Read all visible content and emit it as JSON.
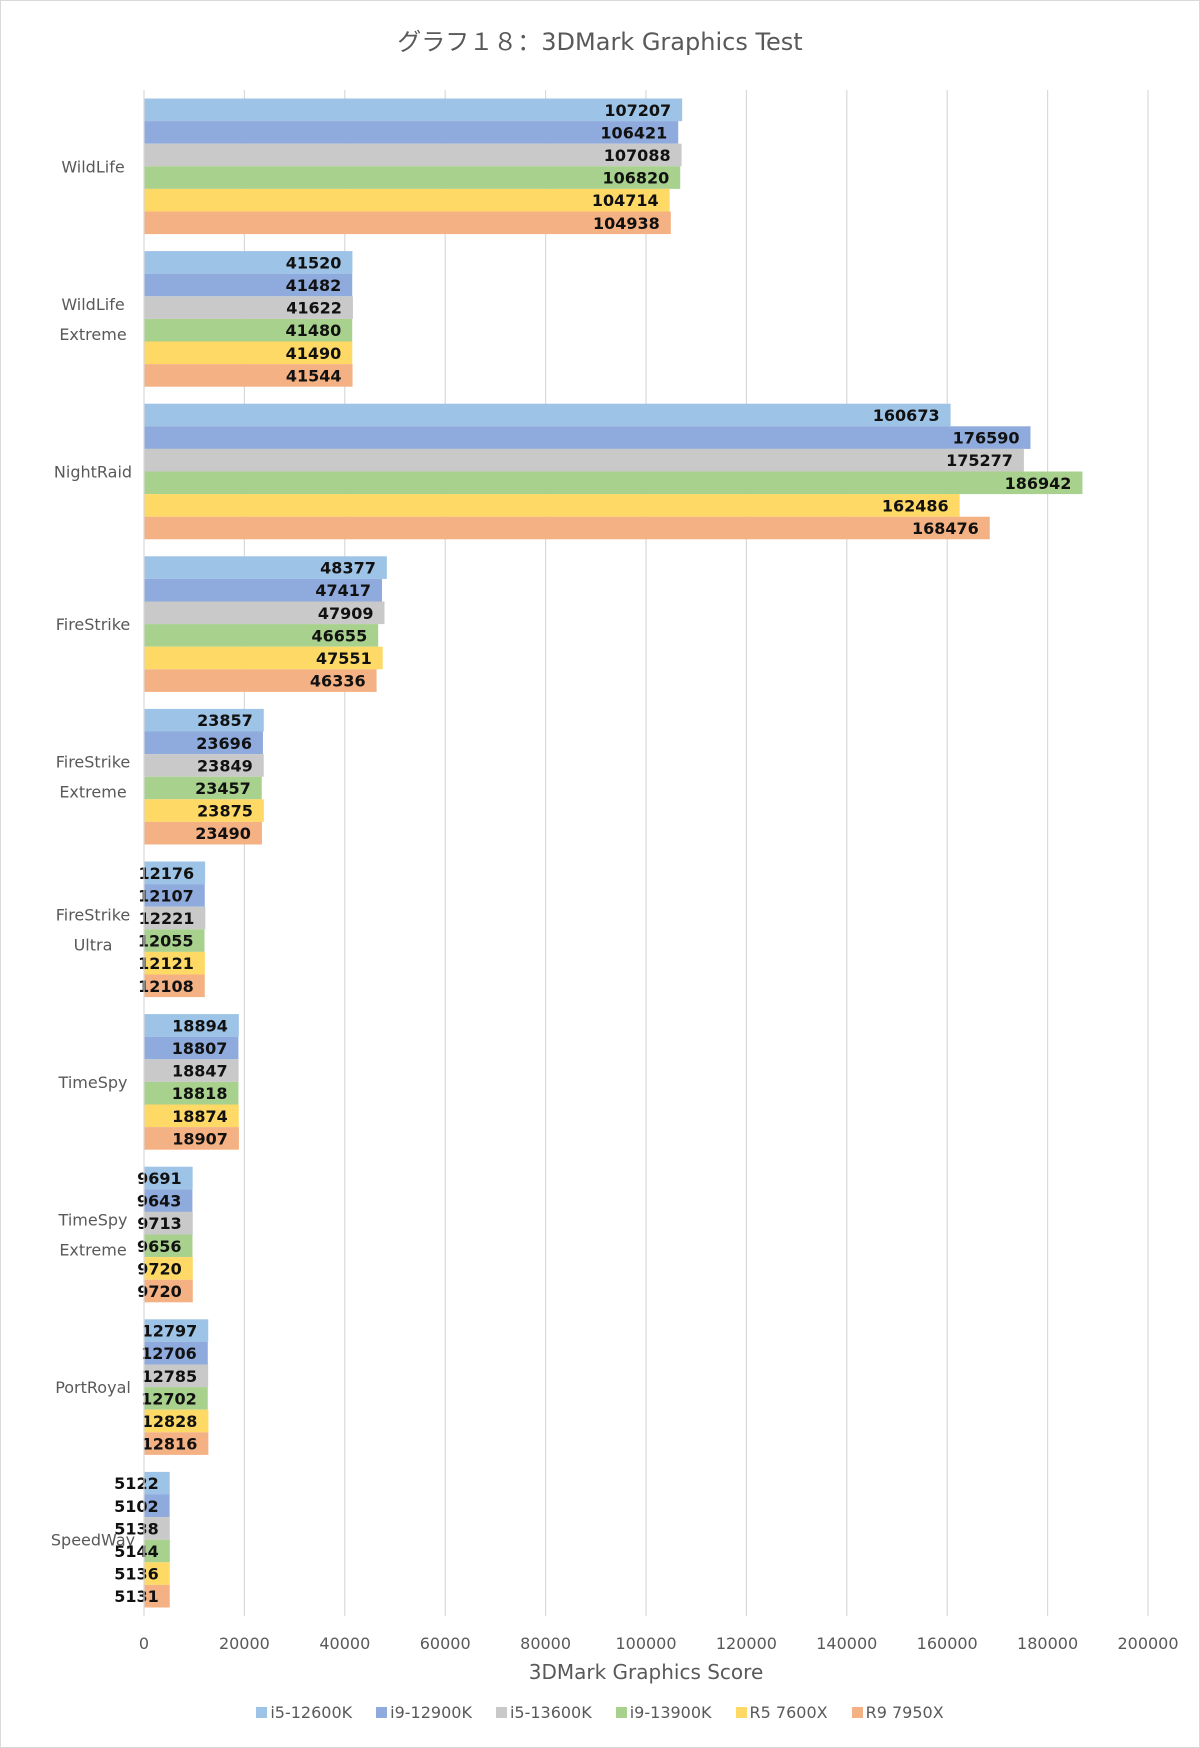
{
  "chart_data": {
    "type": "bar",
    "orientation": "horizontal",
    "title": "グラフ１８：3DMark Graphics Test",
    "xlabel": "3DMark Graphics Score",
    "ylabel": "",
    "xlim": [
      0,
      200000
    ],
    "x_ticks": [
      "0",
      "20000",
      "40000",
      "60000",
      "80000",
      "100000",
      "120000",
      "140000",
      "160000",
      "180000",
      "200000"
    ],
    "grid": "vertical",
    "legend_position": "bottom",
    "categories": [
      [
        "WildLife"
      ],
      [
        "WildLife",
        "Extreme"
      ],
      [
        "NightRaid"
      ],
      [
        "FireStrike"
      ],
      [
        "FireStrike",
        "Extreme"
      ],
      [
        "FireStrike",
        "Ultra"
      ],
      [
        "TimeSpy"
      ],
      [
        "TimeSpy",
        "Extreme"
      ],
      [
        "PortRoyal"
      ],
      [
        "SpeedWay"
      ]
    ],
    "series": [
      {
        "name": "i5-12600K",
        "color": "#9dc3e6",
        "values": [
          107207,
          41520,
          160673,
          48377,
          23857,
          12176,
          18894,
          9691,
          12797,
          5122
        ]
      },
      {
        "name": "i9-12900K",
        "color": "#8faadc",
        "values": [
          106421,
          41482,
          176590,
          47417,
          23696,
          12107,
          18807,
          9643,
          12706,
          5102
        ]
      },
      {
        "name": "i5-13600K",
        "color": "#c9c9c9",
        "values": [
          107088,
          41622,
          175277,
          47909,
          23849,
          12221,
          18847,
          9713,
          12785,
          5138
        ]
      },
      {
        "name": "i9-13900K",
        "color": "#a9d18e",
        "values": [
          106820,
          41480,
          186942,
          46655,
          23457,
          12055,
          18818,
          9656,
          12702,
          5144
        ]
      },
      {
        "name": "R5 7600X",
        "color": "#ffd966",
        "values": [
          104714,
          41490,
          162486,
          47551,
          23875,
          12121,
          18874,
          9720,
          12828,
          5136
        ]
      },
      {
        "name": "R9 7950X",
        "color": "#f4b183",
        "values": [
          104938,
          41544,
          168476,
          46336,
          23490,
          12108,
          18907,
          9720,
          12816,
          5131
        ]
      }
    ]
  }
}
